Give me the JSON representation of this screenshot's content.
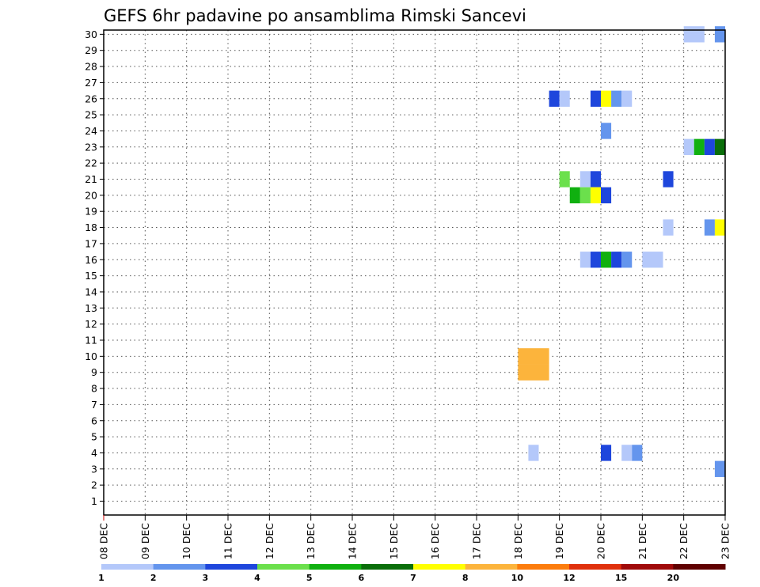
{
  "chart_data": {
    "type": "heatmap",
    "title": "GEFS 6hr padavine po ansamblima Rimski Sancevi",
    "x_labels": [
      "08 DEC",
      "09 DEC",
      "10 DEC",
      "11 DEC",
      "12 DEC",
      "13 DEC",
      "14 DEC",
      "15 DEC",
      "16 DEC",
      "17 DEC",
      "18 DEC",
      "19 DEC",
      "20 DEC",
      "21 DEC",
      "22 DEC",
      "23 DEC"
    ],
    "y_labels": [
      "1",
      "2",
      "3",
      "4",
      "5",
      "6",
      "7",
      "8",
      "9",
      "10",
      "11",
      "12",
      "13",
      "14",
      "15",
      "16",
      "17",
      "18",
      "19",
      "20",
      "21",
      "22",
      "23",
      "24",
      "25",
      "26",
      "27",
      "28",
      "29",
      "30"
    ],
    "grid": true,
    "legend": {
      "placement": "bottom",
      "colors": [
        "#b4c8fa",
        "#6495ed",
        "#1e46dc",
        "#6be04c",
        "#10b010",
        "#0a6e0a",
        "#ffff00",
        "#fcb43c",
        "#fc7c0c",
        "#e0300c",
        "#a00a0a",
        "#600000"
      ],
      "labels": [
        "1",
        "2",
        "3",
        "4",
        "5",
        "6",
        "7",
        "8",
        "10",
        "12",
        "15",
        "20"
      ]
    },
    "cells": [
      {
        "member": 30,
        "day": 22.0,
        "span": 0.5,
        "color": "#b4c8fa"
      },
      {
        "member": 30,
        "day": 22.75,
        "span": 0.25,
        "color": "#6495ed"
      },
      {
        "member": 26,
        "day": 18.75,
        "span": 0.25,
        "color": "#1e46dc"
      },
      {
        "member": 26,
        "day": 19.0,
        "span": 0.25,
        "color": "#b4c8fa"
      },
      {
        "member": 26,
        "day": 19.75,
        "span": 0.25,
        "color": "#1e46dc"
      },
      {
        "member": 26,
        "day": 20.0,
        "span": 0.25,
        "color": "#ffff00"
      },
      {
        "member": 26,
        "day": 20.25,
        "span": 0.25,
        "color": "#6495ed"
      },
      {
        "member": 26,
        "day": 20.5,
        "span": 0.25,
        "color": "#b4c8fa"
      },
      {
        "member": 24,
        "day": 20.0,
        "span": 0.25,
        "color": "#6495ed"
      },
      {
        "member": 23,
        "day": 22.0,
        "span": 0.25,
        "color": "#b4c8fa"
      },
      {
        "member": 23,
        "day": 22.25,
        "span": 0.25,
        "color": "#10b010"
      },
      {
        "member": 23,
        "day": 22.5,
        "span": 0.25,
        "color": "#1e46dc"
      },
      {
        "member": 23,
        "day": 22.75,
        "span": 0.25,
        "color": "#0a6e0a"
      },
      {
        "member": 21,
        "day": 19.0,
        "span": 0.25,
        "color": "#6be04c"
      },
      {
        "member": 21,
        "day": 19.5,
        "span": 0.25,
        "color": "#b4c8fa"
      },
      {
        "member": 21,
        "day": 19.75,
        "span": 0.25,
        "color": "#1e46dc"
      },
      {
        "member": 21,
        "day": 21.5,
        "span": 0.25,
        "color": "#1e46dc"
      },
      {
        "member": 20,
        "day": 19.25,
        "span": 0.25,
        "color": "#10b010"
      },
      {
        "member": 20,
        "day": 19.5,
        "span": 0.25,
        "color": "#6be04c"
      },
      {
        "member": 20,
        "day": 19.75,
        "span": 0.25,
        "color": "#ffff00"
      },
      {
        "member": 20,
        "day": 20.0,
        "span": 0.25,
        "color": "#1e46dc"
      },
      {
        "member": 18,
        "day": 21.5,
        "span": 0.25,
        "color": "#b4c8fa"
      },
      {
        "member": 18,
        "day": 22.5,
        "span": 0.25,
        "color": "#6495ed"
      },
      {
        "member": 18,
        "day": 22.75,
        "span": 0.25,
        "color": "#ffff00"
      },
      {
        "member": 16,
        "day": 21.0,
        "span": 0.5,
        "color": "#b4c8fa"
      },
      {
        "member": 16,
        "day": 19.5,
        "span": 0.25,
        "color": "#b4c8fa"
      },
      {
        "member": 16,
        "day": 19.75,
        "span": 0.25,
        "color": "#1e46dc"
      },
      {
        "member": 16,
        "day": 20.0,
        "span": 0.25,
        "color": "#10b010"
      },
      {
        "member": 16,
        "day": 20.25,
        "span": 0.25,
        "color": "#1e46dc"
      },
      {
        "member": 16,
        "day": 20.5,
        "span": 0.25,
        "color": "#6495ed"
      },
      {
        "member": 9,
        "day": 18.0,
        "span": 0.75,
        "color": "#fcb43c"
      },
      {
        "member": 10,
        "day": 18.0,
        "span": 0.75,
        "color": "#fcb43c"
      },
      {
        "member": 4,
        "day": 18.25,
        "span": 0.25,
        "color": "#b4c8fa"
      },
      {
        "member": 4,
        "day": 20.0,
        "span": 0.25,
        "color": "#1e46dc"
      },
      {
        "member": 4,
        "day": 20.5,
        "span": 0.25,
        "color": "#b4c8fa"
      },
      {
        "member": 4,
        "day": 20.75,
        "span": 0.25,
        "color": "#6495ed"
      },
      {
        "member": 3,
        "day": 22.75,
        "span": 0.25,
        "color": "#6495ed"
      }
    ]
  }
}
